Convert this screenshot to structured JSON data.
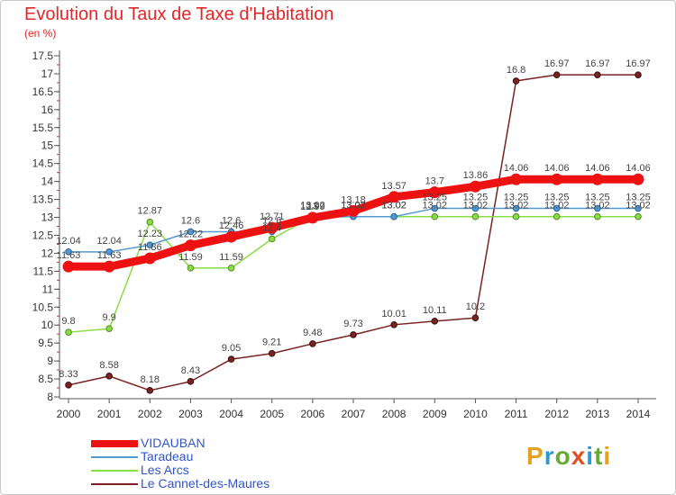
{
  "title": "Evolution du Taux de Taxe d'Habitation",
  "subtitle": "(en %)",
  "logo": {
    "text": "Proxiti",
    "colors": [
      "#e8a020",
      "#3399cc",
      "#66aa33",
      "#e05020",
      "#3399cc",
      "#66aa33",
      "#e8a020"
    ]
  },
  "chart_data": {
    "type": "line",
    "x": [
      2000,
      2001,
      2002,
      2003,
      2004,
      2005,
      2006,
      2007,
      2008,
      2009,
      2010,
      2011,
      2012,
      2013,
      2014
    ],
    "ylim": [
      8,
      17.5
    ],
    "yticks": [
      "8",
      "8.5",
      "9",
      "9.5",
      "10",
      "10.5",
      "11",
      "11.5",
      "12",
      "12.5",
      "13",
      "13.5",
      "14",
      "14.5",
      "15",
      "15.5",
      "16",
      "16.5",
      "17",
      "17.5"
    ],
    "grid": false,
    "legend_position": "bottom-left",
    "series": [
      {
        "name": "VIDAUBAN",
        "color": "#ee1111",
        "values": [
          11.63,
          11.63,
          11.86,
          12.22,
          12.46,
          12.71,
          12.99,
          13.18,
          13.57,
          13.7,
          13.86,
          14.06,
          14.06,
          14.06,
          14.06
        ],
        "labels": [
          "11.63",
          "11.63",
          "11.86",
          "12.22",
          "12.46",
          "12.71",
          "12.99",
          "13.18",
          "13.57",
          "13.7",
          "13.86",
          "14.06",
          "14.06",
          "14.06",
          "14.06"
        ]
      },
      {
        "name": "Taradeau",
        "color": "#5599cc",
        "values": [
          12.04,
          12.04,
          12.23,
          12.6,
          12.6,
          12.6,
          13.0,
          13.02,
          13.02,
          13.25,
          13.25,
          13.25,
          13.25,
          13.25,
          13.25
        ],
        "labels": [
          "12.04",
          "12.04",
          "12.23",
          "12.6",
          "12.6",
          "12.6",
          "13",
          "13.02",
          "13.02",
          "13.25",
          "13.25",
          "13.25",
          "13.25",
          "13.25",
          "13.25"
        ]
      },
      {
        "name": "Les Arcs",
        "color": "#88dd44",
        "values": [
          9.8,
          9.9,
          12.87,
          11.59,
          11.59,
          12.4,
          13.02,
          13.02,
          13.02,
          13.02,
          13.02,
          13.02,
          13.02,
          13.02,
          13.02
        ],
        "labels": [
          "9.8",
          "9.9",
          "12.87",
          "11.59",
          "11.59",
          "12.4",
          "13.02",
          "13.02",
          "13.02",
          "13.02",
          "13.02",
          "13.02",
          "13.02",
          "13.02",
          "13.02"
        ]
      },
      {
        "name": "Le Cannet-des-Maures",
        "color": "#7a2222",
        "values": [
          8.33,
          8.58,
          8.18,
          8.43,
          9.05,
          9.21,
          9.48,
          9.73,
          10.01,
          10.11,
          10.2,
          16.8,
          16.97,
          16.97,
          16.97
        ],
        "labels": [
          "8.33",
          "8.58",
          "8.18",
          "8.43",
          "9.05",
          "9.21",
          "9.48",
          "9.73",
          "10.01",
          "10.11",
          "10.2",
          "16.8",
          "16.97",
          "16.97",
          "16.97"
        ]
      }
    ]
  }
}
